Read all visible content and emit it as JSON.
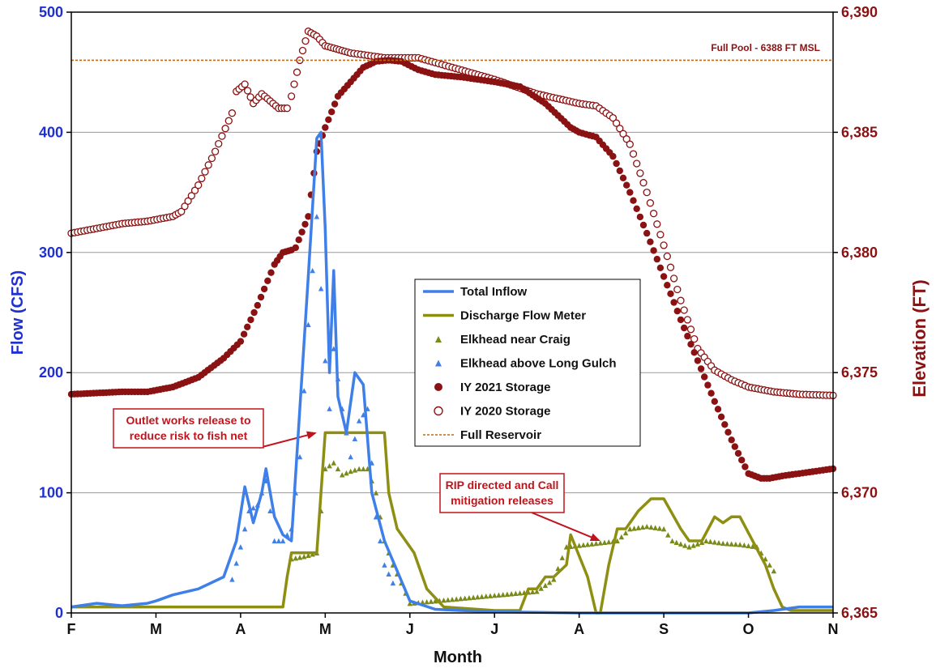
{
  "chart_data": {
    "type": "line",
    "xlabel": "Month",
    "ylabel": "Flow (CFS)",
    "y2label": "Elevation (FT)",
    "ylim": [
      0,
      500
    ],
    "y2lim": [
      6365,
      6390
    ],
    "x_ticks": [
      "F",
      "M",
      "A",
      "M",
      "J",
      "J",
      "A",
      "S",
      "O",
      "N"
    ],
    "y_ticks": [
      "0",
      "100",
      "200",
      "300",
      "400",
      "500"
    ],
    "y2_ticks": [
      "6,365",
      "6,370",
      "6,375",
      "6,380",
      "6,385",
      "6,390"
    ],
    "grid": "horizontal",
    "legend_position": "center-right",
    "reference_label": "Full Pool - 6388 FT MSL",
    "full_pool_elevation": 6388,
    "annotations": [
      {
        "lines": [
          "Outlet works release to",
          "reduce risk to fish net"
        ],
        "arrow_to": [
          2.9,
          150
        ]
      },
      {
        "lines": [
          "RIP directed and Call",
          "mitigation releases"
        ],
        "arrow_to": [
          6.25,
          60
        ]
      }
    ],
    "colors": {
      "inflow": "#3f7fe8",
      "discharge": "#8e8f12",
      "craig": "#7a8a18",
      "longgulch": "#3f7fe8",
      "storage2021": "#8b1212",
      "storage2020": "#8b1212",
      "fullpool": "#c06a10"
    },
    "series": [
      {
        "key": "inflow",
        "name": "Total Inflow",
        "style": "line",
        "axis": "left",
        "x": [
          0,
          0.3,
          0.6,
          0.9,
          1.0,
          1.2,
          1.5,
          1.8,
          1.95,
          2.05,
          2.15,
          2.25,
          2.3,
          2.4,
          2.5,
          2.6,
          2.7,
          2.8,
          2.9,
          2.95,
          3.0,
          3.05,
          3.1,
          3.15,
          3.25,
          3.35,
          3.45,
          3.55,
          3.7,
          3.85,
          4.0,
          4.3,
          4.6,
          5.0,
          6.0,
          7.0,
          8.0,
          8.3,
          8.6,
          9.0
        ],
        "y": [
          5,
          8,
          6,
          8,
          10,
          15,
          20,
          30,
          60,
          105,
          75,
          100,
          120,
          80,
          65,
          60,
          170,
          280,
          395,
          400,
          320,
          200,
          285,
          180,
          150,
          200,
          190,
          100,
          60,
          35,
          10,
          3,
          2,
          1,
          0,
          0,
          0,
          2,
          5,
          5
        ]
      },
      {
        "key": "discharge",
        "name": "Discharge Flow Meter",
        "style": "line",
        "axis": "left",
        "x": [
          0,
          2.5,
          2.55,
          2.6,
          2.9,
          2.95,
          3.0,
          3.7,
          3.75,
          3.85,
          3.95,
          4.05,
          4.2,
          4.4,
          4.8,
          5.0,
          5.3,
          5.4,
          5.5,
          5.6,
          5.7,
          5.85,
          5.9,
          6.1,
          6.2,
          6.25,
          6.35,
          6.45,
          6.55,
          6.7,
          6.85,
          7.0,
          7.2,
          7.3,
          7.45,
          7.6,
          7.7,
          7.8,
          7.9,
          8.2,
          8.3,
          8.4,
          8.5,
          9.0
        ],
        "y": [
          5,
          5,
          30,
          50,
          50,
          100,
          150,
          150,
          100,
          70,
          60,
          50,
          20,
          5,
          3,
          2,
          2,
          20,
          20,
          30,
          30,
          40,
          65,
          30,
          0,
          0,
          40,
          70,
          70,
          85,
          95,
          95,
          70,
          60,
          60,
          80,
          75,
          80,
          80,
          40,
          20,
          5,
          2,
          2
        ]
      },
      {
        "key": "craig",
        "name": "Elkhead near Craig",
        "style": "triangle",
        "axis": "left",
        "x": [
          2.6,
          2.75,
          2.9,
          3.0,
          3.1,
          3.2,
          3.3,
          3.4,
          3.5,
          3.6,
          3.7,
          3.8,
          3.9,
          4.0,
          5.5,
          5.7,
          5.85,
          6.45,
          6.6,
          6.8,
          7.0,
          7.1,
          7.3,
          7.5,
          7.7,
          7.9,
          8.1,
          8.3
        ],
        "y": [
          45,
          47,
          50,
          120,
          125,
          115,
          118,
          120,
          120,
          100,
          60,
          40,
          25,
          8,
          18,
          28,
          55,
          60,
          70,
          72,
          70,
          60,
          55,
          60,
          58,
          57,
          55,
          35
        ]
      },
      {
        "key": "longgulch",
        "name": "Elkhead above Long Gulch",
        "style": "triangle",
        "axis": "left",
        "x": [
          1.9,
          2.0,
          2.1,
          2.2,
          2.3,
          2.4,
          2.5,
          2.6,
          2.7,
          2.8,
          2.9,
          3.0,
          3.05,
          3.1,
          3.2,
          3.3,
          3.4,
          3.5,
          3.6,
          3.7,
          3.8
        ],
        "y": [
          28,
          55,
          85,
          90,
          110,
          60,
          60,
          70,
          130,
          240,
          330,
          210,
          170,
          220,
          170,
          130,
          160,
          170,
          80,
          40,
          25
        ]
      },
      {
        "key": "storage2021",
        "name": "IY 2021 Storage",
        "style": "filled-circle",
        "axis": "right",
        "x": [
          0,
          0.3,
          0.6,
          0.9,
          1.2,
          1.5,
          1.8,
          2.0,
          2.2,
          2.4,
          2.5,
          2.6,
          2.65,
          2.8,
          2.9,
          3.0,
          3.15,
          3.3,
          3.45,
          3.6,
          3.75,
          3.9,
          4.1,
          4.3,
          4.6,
          5.0,
          5.3,
          5.6,
          5.9,
          6.0,
          6.2,
          6.4,
          6.6,
          6.8,
          7.0,
          7.2,
          7.4,
          7.6,
          7.8,
          8.0,
          8.15,
          8.25,
          8.4,
          8.6,
          8.8,
          9.0
        ],
        "y": [
          6374.1,
          6374.15,
          6374.2,
          6374.2,
          6374.4,
          6374.8,
          6375.6,
          6376.3,
          6377.8,
          6379.5,
          6380,
          6380.1,
          6380.2,
          6381.5,
          6384.2,
          6385.2,
          6386.5,
          6387.1,
          6387.7,
          6387.95,
          6388,
          6387.95,
          6387.6,
          6387.4,
          6387.3,
          6387.1,
          6386.9,
          6386.2,
          6385.2,
          6385,
          6384.8,
          6384,
          6382.5,
          6380.8,
          6379,
          6377.2,
          6375.5,
          6373.8,
          6372.2,
          6370.8,
          6370.6,
          6370.6,
          6370.7,
          6370.8,
          6370.9,
          6371
        ]
      },
      {
        "key": "storage2020",
        "name": "IY 2020 Storage",
        "style": "open-circle",
        "axis": "right",
        "x": [
          0,
          0.3,
          0.6,
          0.9,
          1.2,
          1.3,
          1.5,
          1.7,
          1.9,
          1.95,
          2.05,
          2.15,
          2.25,
          2.35,
          2.45,
          2.55,
          2.6,
          2.7,
          2.8,
          2.9,
          3.0,
          3.1,
          3.2,
          3.3,
          3.5,
          3.7,
          3.9,
          4.1,
          4.5,
          5.0,
          5.5,
          6.0,
          6.2,
          6.4,
          6.6,
          6.8,
          7.0,
          7.2,
          7.4,
          7.6,
          7.8,
          8.0,
          8.3,
          8.6,
          9.0
        ],
        "y": [
          6380.8,
          6381,
          6381.2,
          6381.3,
          6381.5,
          6381.7,
          6382.8,
          6384.2,
          6385.8,
          6386.7,
          6387,
          6386.2,
          6386.6,
          6386.3,
          6386,
          6386,
          6386.5,
          6388,
          6389.2,
          6389,
          6388.6,
          6388.5,
          6388.4,
          6388.3,
          6388.2,
          6388.1,
          6388.1,
          6388.1,
          6387.7,
          6387.2,
          6386.6,
          6386.2,
          6386.1,
          6385.6,
          6384.5,
          6382.5,
          6380.3,
          6378,
          6376,
          6375.1,
          6374.7,
          6374.4,
          6374.2,
          6374.1,
          6374.05
        ]
      },
      {
        "key": "fullpool",
        "name": "Full Reservoir",
        "style": "dashed",
        "axis": "right",
        "x": [
          0,
          9
        ],
        "y": [
          6388,
          6388
        ]
      }
    ]
  }
}
